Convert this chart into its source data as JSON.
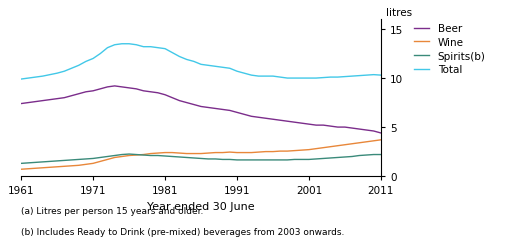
{
  "years": [
    1961,
    1962,
    1963,
    1964,
    1965,
    1966,
    1967,
    1968,
    1969,
    1970,
    1971,
    1972,
    1973,
    1974,
    1975,
    1976,
    1977,
    1978,
    1979,
    1980,
    1981,
    1982,
    1983,
    1984,
    1985,
    1986,
    1987,
    1988,
    1989,
    1990,
    1991,
    1992,
    1993,
    1994,
    1995,
    1996,
    1997,
    1998,
    1999,
    2000,
    2001,
    2002,
    2003,
    2004,
    2005,
    2006,
    2007,
    2008,
    2009,
    2010,
    2011
  ],
  "beer": [
    7.4,
    7.5,
    7.6,
    7.7,
    7.8,
    7.9,
    8.0,
    8.2,
    8.4,
    8.6,
    8.7,
    8.9,
    9.1,
    9.2,
    9.1,
    9.0,
    8.9,
    8.7,
    8.6,
    8.5,
    8.3,
    8.0,
    7.7,
    7.5,
    7.3,
    7.1,
    7.0,
    6.9,
    6.8,
    6.7,
    6.5,
    6.3,
    6.1,
    6.0,
    5.9,
    5.8,
    5.7,
    5.6,
    5.5,
    5.4,
    5.3,
    5.2,
    5.2,
    5.1,
    5.0,
    5.0,
    4.9,
    4.8,
    4.7,
    4.6,
    4.4
  ],
  "wine": [
    0.7,
    0.75,
    0.8,
    0.85,
    0.9,
    0.95,
    1.0,
    1.05,
    1.1,
    1.2,
    1.3,
    1.5,
    1.7,
    1.9,
    2.0,
    2.1,
    2.15,
    2.2,
    2.3,
    2.35,
    2.4,
    2.4,
    2.35,
    2.3,
    2.3,
    2.3,
    2.35,
    2.4,
    2.4,
    2.45,
    2.4,
    2.4,
    2.4,
    2.45,
    2.5,
    2.5,
    2.55,
    2.55,
    2.6,
    2.65,
    2.7,
    2.8,
    2.9,
    3.0,
    3.1,
    3.2,
    3.3,
    3.4,
    3.5,
    3.6,
    3.7
  ],
  "spirits": [
    1.3,
    1.35,
    1.4,
    1.45,
    1.5,
    1.55,
    1.6,
    1.65,
    1.7,
    1.75,
    1.8,
    1.9,
    2.0,
    2.1,
    2.2,
    2.25,
    2.2,
    2.15,
    2.1,
    2.1,
    2.05,
    2.0,
    1.95,
    1.9,
    1.85,
    1.8,
    1.75,
    1.75,
    1.7,
    1.7,
    1.65,
    1.65,
    1.65,
    1.65,
    1.65,
    1.65,
    1.65,
    1.65,
    1.7,
    1.7,
    1.7,
    1.75,
    1.8,
    1.85,
    1.9,
    1.95,
    2.0,
    2.1,
    2.15,
    2.2,
    2.2
  ],
  "total": [
    9.9,
    10.0,
    10.1,
    10.2,
    10.35,
    10.5,
    10.7,
    11.0,
    11.3,
    11.7,
    12.0,
    12.5,
    13.1,
    13.4,
    13.5,
    13.5,
    13.4,
    13.2,
    13.2,
    13.1,
    13.0,
    12.6,
    12.2,
    11.9,
    11.7,
    11.4,
    11.3,
    11.2,
    11.1,
    11.0,
    10.7,
    10.5,
    10.3,
    10.2,
    10.2,
    10.2,
    10.1,
    10.0,
    10.0,
    10.0,
    10.0,
    10.0,
    10.05,
    10.1,
    10.1,
    10.15,
    10.2,
    10.25,
    10.3,
    10.35,
    10.3
  ],
  "beer_color": "#7B2D8B",
  "wine_color": "#E8873A",
  "spirits_color": "#3A8A7A",
  "total_color": "#42C8E8",
  "xlabel": "Year ended 30 June",
  "ylabel": "litres",
  "yticks": [
    0,
    5,
    10,
    15
  ],
  "xticks": [
    1961,
    1971,
    1981,
    1991,
    2001,
    2011
  ],
  "note1": "(a) Litres per person 15 years and older.",
  "note2": "(b) Includes Ready to Drink (pre-mixed) beverages from 2003 onwards.",
  "legend_labels": [
    "Beer",
    "Wine",
    "Spirits(b)",
    "Total"
  ],
  "ylim": [
    0,
    16
  ],
  "xlim": [
    1961,
    2011
  ]
}
